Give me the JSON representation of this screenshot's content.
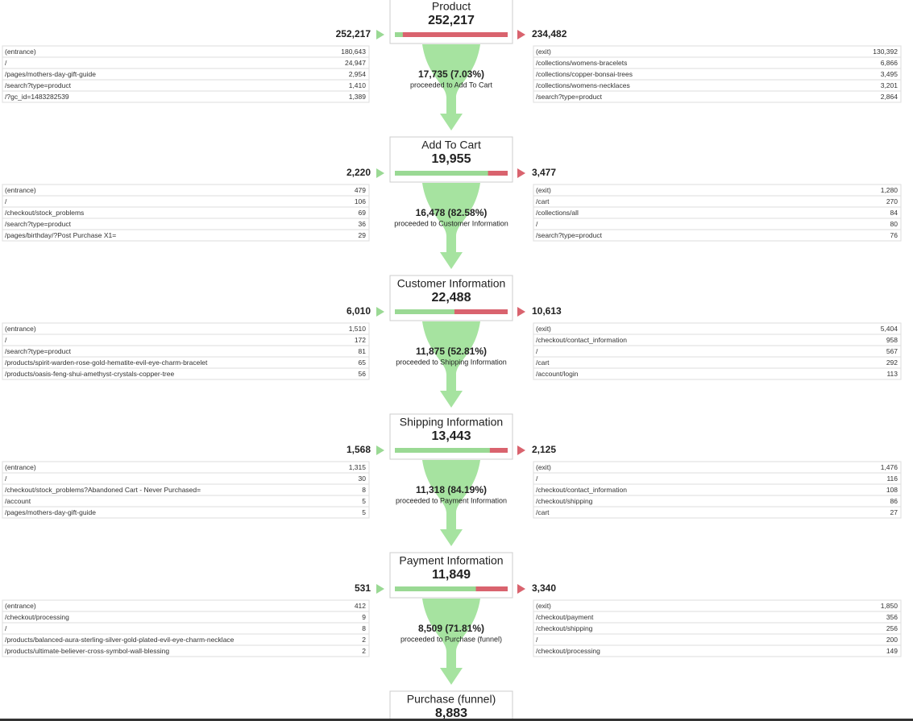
{
  "stages": [
    {
      "name": "Product",
      "total": {
        "value": 252217,
        "label": "252,217"
      },
      "entrances": "252,217",
      "exits": "234,482",
      "entrance_rows": [
        [
          "(entrance)",
          "180,643"
        ],
        [
          "/",
          "24,947"
        ],
        [
          "/pages/mothers-day-gift-guide",
          "2,954"
        ],
        [
          "/search?type=product",
          "1,410"
        ],
        [
          "/?gc_id=1483282539",
          "1,389"
        ]
      ],
      "exit_rows": [
        [
          "(exit)",
          "130,392"
        ],
        [
          "/collections/womens-bracelets",
          "6,866"
        ],
        [
          "/collections/copper-bonsai-trees",
          "3,495"
        ],
        [
          "/collections/womens-necklaces",
          "3,201"
        ],
        [
          "/search?type=product",
          "2,864"
        ]
      ],
      "proceeded": {
        "value": 17735,
        "label": "17,735 (7.03%)"
      },
      "proceeded_text": "proceeded to Add To Cart"
    },
    {
      "name": "Add To Cart",
      "total": {
        "value": 19955,
        "label": "19,955"
      },
      "entrances": "2,220",
      "exits": "3,477",
      "entrance_rows": [
        [
          "(entrance)",
          "479"
        ],
        [
          "/",
          "106"
        ],
        [
          "/checkout/stock_problems",
          "69"
        ],
        [
          "/search?type=product",
          "36"
        ],
        [
          "/pages/birthday/?Post Purchase X1=",
          "29"
        ]
      ],
      "exit_rows": [
        [
          "(exit)",
          "1,280"
        ],
        [
          "/cart",
          "270"
        ],
        [
          "/collections/all",
          "84"
        ],
        [
          "/",
          "80"
        ],
        [
          "/search?type=product",
          "76"
        ]
      ],
      "proceeded": {
        "value": 16478,
        "label": "16,478 (82.58%)"
      },
      "proceeded_text": "proceeded to Customer Information"
    },
    {
      "name": "Customer Information",
      "total": {
        "value": 22488,
        "label": "22,488"
      },
      "entrances": "6,010",
      "exits": "10,613",
      "entrance_rows": [
        [
          "(entrance)",
          "1,510"
        ],
        [
          "/",
          "172"
        ],
        [
          "/search?type=product",
          "81"
        ],
        [
          "/products/spirit-warden-rose-gold-hematite-evil-eye-charm-bracelet",
          "65"
        ],
        [
          "/products/oasis-feng-shui-amethyst-crystals-copper-tree",
          "56"
        ]
      ],
      "exit_rows": [
        [
          "(exit)",
          "5,404"
        ],
        [
          "/checkout/contact_information",
          "958"
        ],
        [
          "/",
          "567"
        ],
        [
          "/cart",
          "292"
        ],
        [
          "/account/login",
          "113"
        ]
      ],
      "proceeded": {
        "value": 11875,
        "label": "11,875 (52.81%)"
      },
      "proceeded_text": "proceeded to Shipping Information"
    },
    {
      "name": "Shipping Information",
      "total": {
        "value": 13443,
        "label": "13,443"
      },
      "entrances": "1,568",
      "exits": "2,125",
      "entrance_rows": [
        [
          "(entrance)",
          "1,315"
        ],
        [
          "/",
          "30"
        ],
        [
          "/checkout/stock_problems?Abandoned Cart - Never Purchased=",
          "8"
        ],
        [
          "/account",
          "5"
        ],
        [
          "/pages/mothers-day-gift-guide",
          "5"
        ]
      ],
      "exit_rows": [
        [
          "(exit)",
          "1,476"
        ],
        [
          "/",
          "116"
        ],
        [
          "/checkout/contact_information",
          "108"
        ],
        [
          "/checkout/shipping",
          "86"
        ],
        [
          "/cart",
          "27"
        ]
      ],
      "proceeded": {
        "value": 11318,
        "label": "11,318 (84.19%)"
      },
      "proceeded_text": "proceeded to Payment Information"
    },
    {
      "name": "Payment Information",
      "total": {
        "value": 11849,
        "label": "11,849"
      },
      "entrances": "531",
      "exits": "3,340",
      "entrance_rows": [
        [
          "(entrance)",
          "412"
        ],
        [
          "/checkout/processing",
          "9"
        ],
        [
          "/",
          "8"
        ],
        [
          "/products/balanced-aura-sterling-silver-gold-plated-evil-eye-charm-necklace",
          "2"
        ],
        [
          "/products/ultimate-believer-cross-symbol-wall-blessing",
          "2"
        ]
      ],
      "exit_rows": [
        [
          "(exit)",
          "1,850"
        ],
        [
          "/checkout/payment",
          "356"
        ],
        [
          "/checkout/shipping",
          "256"
        ],
        [
          "/",
          "200"
        ],
        [
          "/checkout/processing",
          "149"
        ]
      ],
      "proceeded": {
        "value": 8509,
        "label": "8,509 (71.81%)"
      },
      "proceeded_text": "proceeded to Purchase (funnel)"
    },
    {
      "name": "Purchase (funnel)",
      "total": {
        "value": 8883,
        "label": "8,883"
      }
    }
  ]
}
